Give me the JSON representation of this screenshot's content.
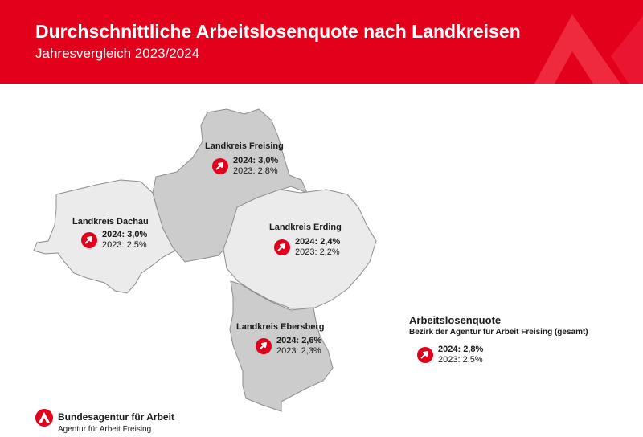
{
  "header": {
    "title": "Durchschnittliche Arbeitslosenquote nach Landkreisen",
    "subtitle": "Jahresvergleich 2023/2024",
    "background_color": "#e2001a"
  },
  "regions": {
    "freising": {
      "label": "Landkreis Freising",
      "current": "2024: 3,0%",
      "previous": "2023: 2,8%",
      "trend": "rising",
      "fill": "#cccccc"
    },
    "dachau": {
      "label": "Landkreis Dachau",
      "current": "2024: 3,0%",
      "previous": "2023: 2,5%",
      "trend": "rising",
      "fill": "#ebebeb"
    },
    "erding": {
      "label": "Landkreis Erding",
      "current": "2024: 2,4%",
      "previous": "2023: 2,2%",
      "trend": "rising",
      "fill": "#ebebeb"
    },
    "ebersberg": {
      "label": "Landkreis Ebersberg",
      "current": "2024: 2,6%",
      "previous": "2023: 2,3%",
      "trend": "rising",
      "fill": "#cccccc"
    }
  },
  "summary": {
    "title": "Arbeitslosenquote",
    "subtitle": "Bezirk der Agentur für Arbeit Freising (gesamt)",
    "current": "2024: 2,8%",
    "previous": "2023: 2,5%",
    "trend": "rising"
  },
  "footer": {
    "org_name": "Bundesagentur für Arbeit",
    "org_unit": "Agentur für Arbeit Freising",
    "logo_icon": "ba-logo-icon"
  },
  "icons": {
    "trend_icon": "trend-up-icon",
    "trend_color": "#e2001a"
  }
}
